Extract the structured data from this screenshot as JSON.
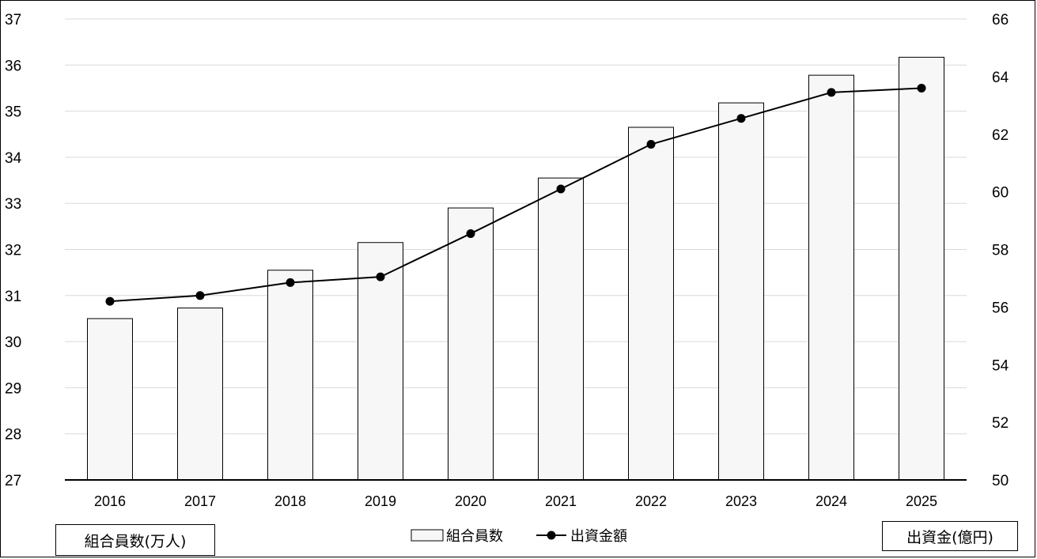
{
  "chart_data": {
    "type": "bar+line",
    "categories": [
      "2016",
      "2017",
      "2018",
      "2019",
      "2020",
      "2021",
      "2022",
      "2023",
      "2024",
      "2025"
    ],
    "series": [
      {
        "name": "組合員数",
        "type": "bar",
        "axis": "left",
        "values": [
          30.5,
          30.73,
          31.55,
          32.15,
          32.9,
          33.55,
          34.65,
          35.18,
          35.78,
          36.17
        ]
      },
      {
        "name": "出資金額",
        "type": "line",
        "axis": "right",
        "values": [
          56.2,
          56.4,
          56.85,
          57.05,
          58.55,
          60.1,
          61.65,
          62.55,
          63.45,
          63.6
        ]
      }
    ],
    "y_left": {
      "label": "組合員数(万人)",
      "range": [
        27,
        37
      ],
      "ticks": [
        27,
        28,
        29,
        30,
        31,
        32,
        33,
        34,
        35,
        36,
        37
      ]
    },
    "y_right": {
      "label": "出資金(億円)",
      "range": [
        50,
        66
      ],
      "ticks": [
        50,
        52,
        54,
        56,
        58,
        60,
        62,
        64,
        66
      ]
    },
    "grid": true,
    "legend_position": "bottom-center",
    "colors": {
      "bar_fill": "#f7f7f7",
      "bar_stroke": "#000000",
      "line": "#000000",
      "grid": "#d9d9d9"
    }
  }
}
